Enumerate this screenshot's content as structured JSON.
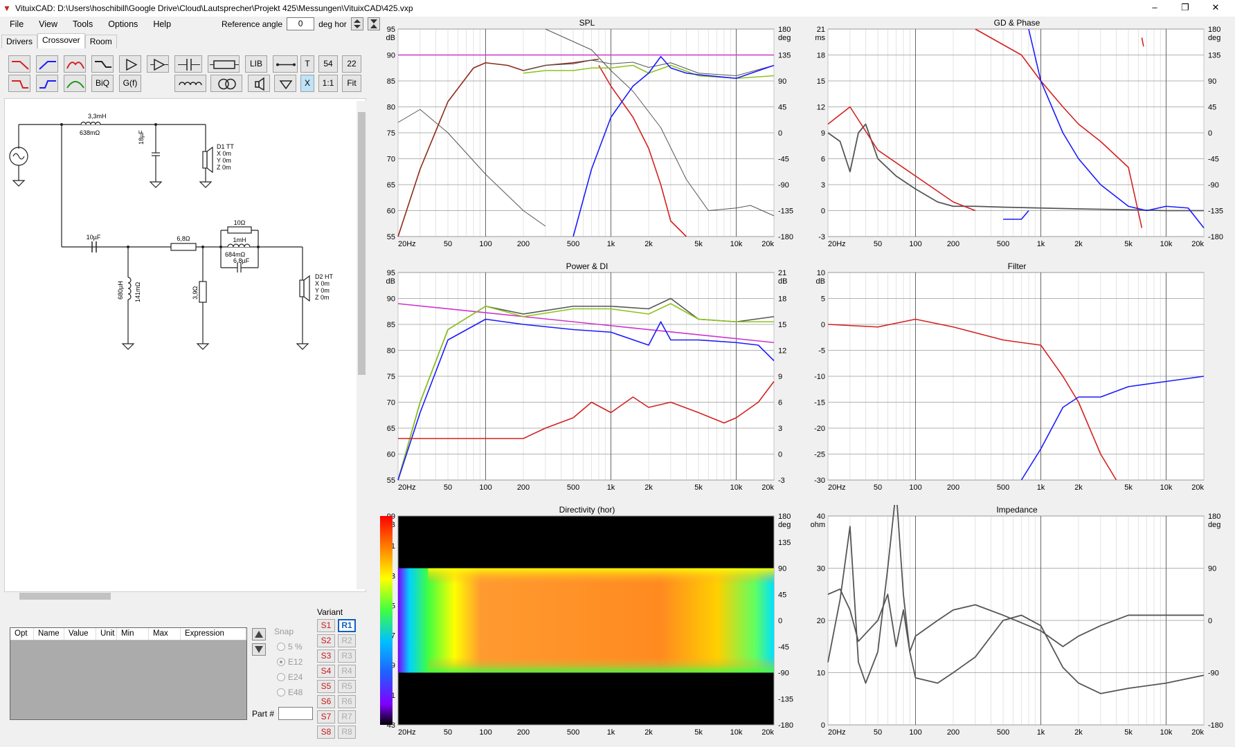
{
  "window": {
    "title": "VituixCAD: D:\\Users\\hoschibill\\Google Drive\\Cloud\\Lautsprecher\\Projekt 425\\Messungen\\VituixCAD\\425.vxp",
    "minimize": "–",
    "maximize": "❐",
    "close": "✕"
  },
  "menu": [
    "File",
    "View",
    "Tools",
    "Options",
    "Help"
  ],
  "reference_angle": {
    "label": "Reference angle",
    "value": "0",
    "unit": "deg hor"
  },
  "tabs": [
    {
      "label": "Drivers"
    },
    {
      "label": "Crossover"
    },
    {
      "label": "Room"
    }
  ],
  "toolbar": {
    "lib": "LIB",
    "t": "T",
    "n54": "54",
    "n22": "22",
    "biq": "BiQ",
    "gf": "G(f)",
    "x": "X",
    "ratio": "1:1",
    "fit": "Fit"
  },
  "schematic": {
    "l1": "3,3mH",
    "l1r": "638mΩ",
    "c1": "18µF",
    "d1": {
      "name": "D1 TT",
      "x": "X 0m",
      "y": "Y 0m",
      "z": "Z 0m"
    },
    "c2": "10µF",
    "r1": "6,8Ω",
    "r2": "10Ω",
    "l2": "1mH",
    "l2r": "684mΩ",
    "c3": "6,8µF",
    "l3": "680µH",
    "l3r": "141mΩ",
    "r3": "3,9Ω",
    "d2": {
      "name": "D2 HT",
      "x": "X 0m",
      "y": "Y 0m",
      "z": "Z 0m"
    }
  },
  "param_table": {
    "columns": [
      "Opt",
      "Name",
      "Value",
      "Unit",
      "Min",
      "Max",
      "Expression"
    ]
  },
  "snap": {
    "label": "Snap",
    "options": [
      "5 %",
      "E12",
      "E24",
      "E48"
    ],
    "selected": "E12"
  },
  "part_label": "Part #",
  "variant": {
    "label": "Variant",
    "s": [
      "S1",
      "S2",
      "S3",
      "S4",
      "S5",
      "S6",
      "S7",
      "S8"
    ],
    "r": [
      "R1",
      "R2",
      "R3",
      "R4",
      "R5",
      "R6",
      "R7",
      "R8"
    ],
    "selected": "R1"
  },
  "colors": {
    "red": "#d42020",
    "blue": "#1a1aff",
    "green": "#8cc41a",
    "gray": "#555555",
    "magenta": "#cc33cc",
    "brown": "#8b2a18"
  },
  "x_ticks": [
    "20Hz",
    "50",
    "100",
    "200",
    "500",
    "1k",
    "2k",
    "5k",
    "10k",
    "20k"
  ],
  "plots": {
    "spl": {
      "title": "SPL",
      "yl_unit": "dB",
      "yr_unit": "deg",
      "yl": [
        "95",
        "90",
        "85",
        "80",
        "75",
        "70",
        "65",
        "60",
        "55"
      ],
      "yr": [
        "180",
        "135",
        "90",
        "45",
        "0",
        "-45",
        "-90",
        "-135",
        "-180"
      ]
    },
    "gd": {
      "title": "GD & Phase",
      "yl_unit": "ms",
      "yr_unit": "deg",
      "yl": [
        "21",
        "18",
        "15",
        "12",
        "9",
        "6",
        "3",
        "0",
        "-3"
      ],
      "yr": [
        "180",
        "135",
        "90",
        "45",
        "0",
        "-45",
        "-90",
        "-135",
        "-180"
      ]
    },
    "power": {
      "title": "Power & DI",
      "yl_unit": "dB",
      "yr_unit": "dB",
      "yl": [
        "95",
        "90",
        "85",
        "80",
        "75",
        "70",
        "65",
        "60",
        "55"
      ],
      "yr": [
        "21",
        "18",
        "15",
        "12",
        "9",
        "6",
        "3",
        "0",
        "-3"
      ]
    },
    "filter": {
      "title": "Filter",
      "yl_unit": "dB",
      "yr_unit": "",
      "yl": [
        "10",
        "5",
        "0",
        "-5",
        "-10",
        "-15",
        "-20",
        "-25",
        "-30"
      ],
      "yr": []
    },
    "dir": {
      "title": "Directivity (hor)",
      "yl_unit": "dB",
      "yr_unit": "deg",
      "yl": [
        "99",
        "91",
        "83",
        "75",
        "67",
        "59",
        "51",
        "43"
      ],
      "yr": [
        "180",
        "135",
        "90",
        "45",
        "0",
        "-45",
        "-90",
        "-135",
        "-180"
      ]
    },
    "imp": {
      "title": "Impedance",
      "yl_unit": "ohm",
      "yr_unit": "deg",
      "yl": [
        "40",
        "30",
        "20",
        "10",
        "0"
      ],
      "yr": [
        "180",
        "90",
        "0",
        "-90",
        "-180"
      ]
    }
  },
  "chart_data": [
    {
      "type": "line",
      "title": "SPL",
      "xlabel": "",
      "ylabel": "dB",
      "xscale": "log",
      "xlim": [
        20,
        20000
      ],
      "ylim": [
        55,
        95
      ],
      "y2lim": [
        -180,
        180
      ],
      "series": [
        {
          "color": "magenta",
          "x": [
            20,
            20000
          ],
          "y": [
            90,
            90
          ]
        },
        {
          "color": "gray",
          "x": [
            20,
            30,
            50,
            100,
            200,
            300
          ],
          "y": [
            77,
            79.5,
            75,
            67,
            60,
            57
          ]
        },
        {
          "color": "gray",
          "x": [
            300,
            700,
            1000,
            1500,
            2500,
            4000,
            6000,
            10000,
            13000,
            20000
          ],
          "y": [
            95,
            91,
            87,
            83,
            76,
            66,
            60,
            60.5,
            61,
            59
          ]
        },
        {
          "color": "brown",
          "x": [
            20,
            30,
            50,
            80,
            100,
            150,
            200,
            300,
            500,
            700,
            800
          ],
          "y": [
            55,
            68,
            81,
            87.5,
            88.5,
            88,
            87,
            88,
            88.5,
            89,
            89.2
          ]
        },
        {
          "color": "red",
          "x": [
            800,
            1000,
            1500,
            2000,
            2500,
            3000,
            4000
          ],
          "y": [
            88,
            84,
            78,
            72,
            65,
            58,
            55
          ]
        },
        {
          "color": "gray",
          "x": [
            200,
            300,
            500,
            700,
            1000,
            1500,
            2000,
            3000,
            5000,
            10000,
            20000
          ],
          "y": [
            87,
            88,
            88.3,
            89,
            88.3,
            88.6,
            87.6,
            88.5,
            86.5,
            86,
            88
          ]
        },
        {
          "color": "green",
          "x": [
            200,
            300,
            500,
            700,
            1000,
            1500,
            2000,
            3000,
            5000,
            10000,
            20000
          ],
          "y": [
            86.5,
            87,
            87,
            87.5,
            87.5,
            88,
            86.5,
            88,
            86,
            85.5,
            86
          ]
        },
        {
          "color": "blue",
          "x": [
            500,
            700,
            1000,
            1500,
            2000,
            2500,
            3000,
            4000,
            5000,
            10000,
            20000
          ],
          "y": [
            55,
            68,
            78,
            84,
            86.5,
            89.7,
            87.5,
            86.5,
            86.2,
            85.5,
            88
          ]
        }
      ]
    },
    {
      "type": "line",
      "title": "GD & Phase",
      "xlabel": "",
      "ylabel": "ms",
      "xscale": "log",
      "xlim": [
        20,
        20000
      ],
      "ylim": [
        -3,
        21
      ],
      "y2lim": [
        -180,
        180
      ],
      "series": [
        {
          "color": "gray",
          "x": [
            20,
            25,
            30,
            35,
            40,
            50,
            70,
            100,
            150,
            200,
            300,
            500,
            1000,
            2000,
            5000,
            10000,
            20000
          ],
          "y": [
            9,
            8,
            4.5,
            9,
            10,
            6,
            4,
            2.5,
            1,
            0.5,
            0.5,
            0.4,
            0.3,
            0.2,
            0.1,
            0,
            0
          ]
        },
        {
          "color": "red",
          "x": [
            20,
            30,
            50,
            100,
            200,
            300
          ],
          "y": [
            10,
            12,
            7,
            4,
            1,
            0
          ]
        },
        {
          "color": "red",
          "x": [
            300,
            700,
            1000,
            1500,
            2000,
            3000,
            5000,
            6400
          ],
          "y": [
            21,
            18,
            15,
            12,
            10,
            8,
            5,
            -2
          ]
        },
        {
          "color": "red",
          "x": [
            6400,
            6600
          ],
          "y": [
            20,
            19
          ]
        },
        {
          "color": "blue",
          "x": [
            500,
            700,
            800
          ],
          "y": [
            -1,
            -1,
            0
          ]
        },
        {
          "color": "blue",
          "x": [
            800,
            1000,
            1500,
            2000,
            3000,
            5000,
            7000,
            10000,
            15000,
            20000
          ],
          "y": [
            21,
            15,
            9,
            6,
            3,
            0.5,
            0,
            0.5,
            0.3,
            -2
          ]
        }
      ]
    },
    {
      "type": "line",
      "title": "Power & DI",
      "xlabel": "",
      "ylabel": "dB",
      "xscale": "log",
      "xlim": [
        20,
        20000
      ],
      "ylim": [
        55,
        95
      ],
      "y2lim": [
        -3,
        21
      ],
      "series": [
        {
          "color": "magenta",
          "x": [
            20,
            20000
          ],
          "y": [
            89,
            81.5
          ]
        },
        {
          "color": "gray",
          "x": [
            20,
            30,
            50,
            100,
            200,
            500,
            1000,
            2000,
            3000,
            5000,
            10000,
            20000
          ],
          "y": [
            55,
            70,
            84,
            88.5,
            87,
            88.5,
            88.5,
            88,
            90,
            86,
            85.5,
            86.5
          ]
        },
        {
          "color": "green",
          "x": [
            20,
            30,
            50,
            100,
            200,
            500,
            1000,
            2000,
            3000,
            5000,
            10000,
            20000
          ],
          "y": [
            55,
            70,
            84,
            88.5,
            86.5,
            88,
            88,
            87,
            89,
            86,
            85.5,
            85.5
          ]
        },
        {
          "color": "blue",
          "x": [
            20,
            30,
            50,
            100,
            200,
            500,
            1000,
            2000,
            2500,
            3000,
            5000,
            10000,
            15000,
            20000
          ],
          "y": [
            55,
            68,
            82,
            86,
            85,
            84,
            83.5,
            81,
            85.5,
            82,
            82,
            81.5,
            81,
            78
          ]
        },
        {
          "color": "red",
          "x": [
            20,
            100,
            200,
            300,
            500,
            700,
            1000,
            1500,
            2000,
            3000,
            5000,
            8000,
            10000,
            15000,
            20000
          ],
          "y": [
            63,
            63,
            63,
            65,
            67,
            70,
            68,
            71,
            69,
            70,
            68,
            66,
            67,
            70,
            74
          ]
        }
      ]
    },
    {
      "type": "line",
      "title": "Filter",
      "xlabel": "",
      "ylabel": "dB",
      "xscale": "log",
      "xlim": [
        20,
        20000
      ],
      "ylim": [
        -30,
        10
      ],
      "series": [
        {
          "color": "red",
          "x": [
            20,
            50,
            100,
            200,
            500,
            700,
            1000,
            1500,
            2000,
            3000,
            4000
          ],
          "y": [
            0,
            -0.5,
            1,
            -0.5,
            -3,
            -3.5,
            -4,
            -10,
            -15,
            -25,
            -30
          ]
        },
        {
          "color": "blue",
          "x": [
            700,
            1000,
            1500,
            2000,
            3000,
            5000,
            10000,
            20000
          ],
          "y": [
            -30,
            -24,
            -16,
            -14,
            -14,
            -12,
            -11,
            -10
          ]
        }
      ]
    },
    {
      "type": "heatmap",
      "title": "Directivity (hor)",
      "xscale": "log",
      "xlim": [
        20,
        20000
      ],
      "ylabel": "deg",
      "ylim": [
        -180,
        180
      ],
      "colorbar": [
        43,
        99
      ]
    },
    {
      "type": "line",
      "title": "Impedance",
      "xlabel": "",
      "ylabel": "ohm",
      "xscale": "log",
      "xlim": [
        20,
        20000
      ],
      "ylim": [
        0,
        40
      ],
      "y2lim": [
        -180,
        180
      ],
      "series": [
        {
          "color": "gray",
          "x": [
            20,
            25,
            30,
            35,
            40,
            50,
            60,
            70,
            80,
            90,
            100,
            150,
            200,
            300,
            500,
            700,
            1000,
            1500,
            2000,
            3000,
            5000,
            10000,
            20000
          ],
          "y": [
            12,
            24,
            38,
            12,
            8,
            14,
            30,
            45,
            25,
            14,
            9,
            8,
            10,
            13,
            20,
            21,
            19,
            11,
            8,
            6,
            7,
            8,
            9.5
          ]
        },
        {
          "color": "gray",
          "x": [
            20,
            25,
            30,
            35,
            50,
            60,
            70,
            80,
            90,
            100,
            150,
            200,
            300,
            500,
            1000,
            1500,
            2000,
            3000,
            5000,
            10000,
            20000
          ],
          "y": [
            25,
            26,
            22,
            16,
            20,
            25,
            15,
            22,
            14,
            17,
            20,
            22,
            23,
            21,
            18,
            15,
            17,
            19,
            21,
            21,
            21
          ]
        }
      ]
    }
  ]
}
